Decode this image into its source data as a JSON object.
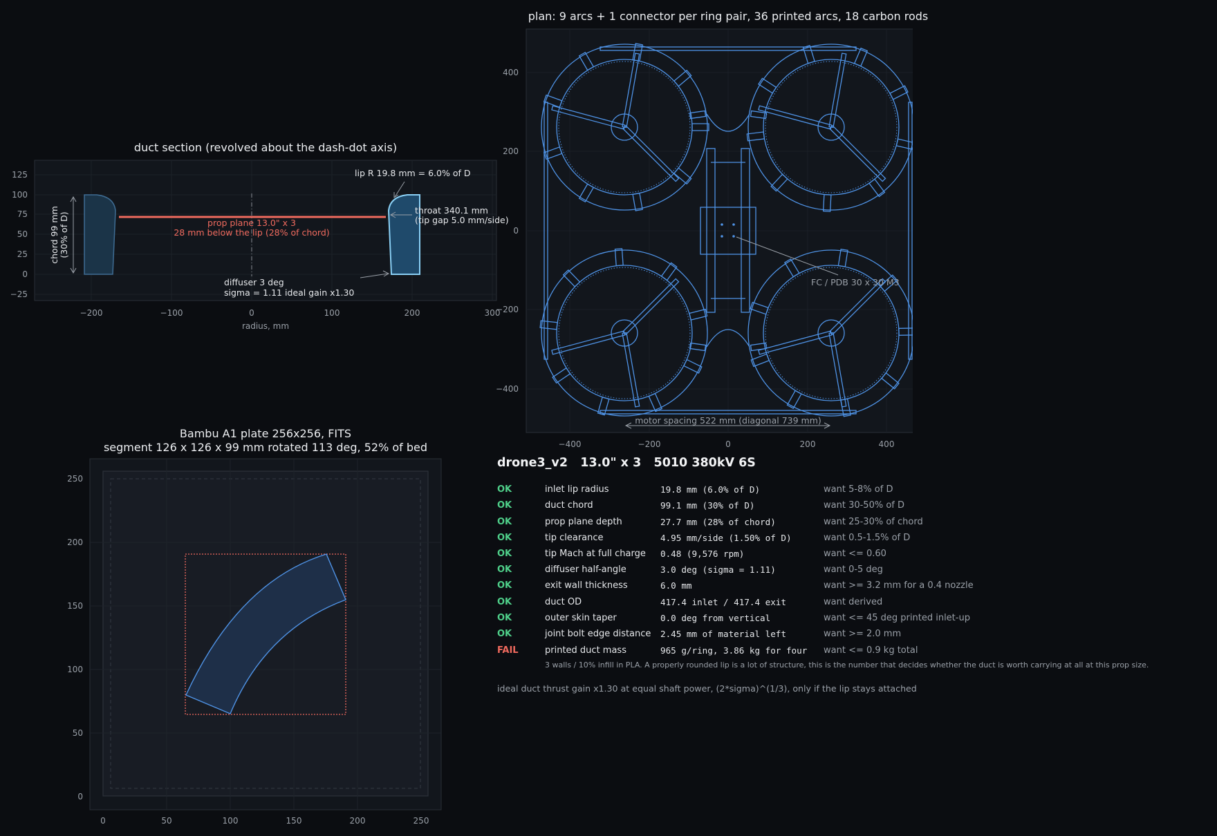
{
  "duct_section": {
    "title": "duct section (revolved about the dash-dot axis)",
    "xlabel": "radius, mm",
    "xticks": [
      "−200",
      "−100",
      "0",
      "100",
      "200",
      "300"
    ],
    "yticks": [
      "125",
      "100",
      "75",
      "50",
      "25",
      "0",
      "−25"
    ],
    "annotations": {
      "lip": "lip R 19.8 mm = 6.0% of D",
      "throat_1": "throat 340.1 mm",
      "throat_2": "(tip gap 5.0 mm/side)",
      "chord_1": "chord 99 mm",
      "chord_2": "(30% of D)",
      "prop_1": "prop plane 13.0\" x 3",
      "prop_2": "28 mm below the lip (28% of chord)",
      "diffuser_1": "diffuser 3 deg",
      "diffuser_2": "sigma = 1.11   ideal gain x1.30"
    }
  },
  "plan": {
    "title": "plan: 9 arcs + 1 connector per ring pair, 36 printed arcs, 18 carbon rods",
    "xticks": [
      "−400",
      "−200",
      "0",
      "200",
      "400"
    ],
    "yticks": [
      "400",
      "200",
      "0",
      "−200",
      "−400"
    ],
    "fc_label": "FC / PDB  30 x 30  M3",
    "spacing_label": "motor spacing 522 mm   (diagonal 739 mm)"
  },
  "bed": {
    "title_1": "Bambu A1 plate 256x256, FITS",
    "title_2": "segment 126 x 126 x 99 mm rotated 113 deg, 52% of bed",
    "xticks": [
      "0",
      "50",
      "100",
      "150",
      "200",
      "250"
    ],
    "yticks": [
      "250",
      "200",
      "150",
      "100",
      "50",
      "0"
    ]
  },
  "summary": {
    "heading": "drone3_v2   13.0\" x 3   5010 380kV 6S",
    "rows": [
      {
        "status": "OK",
        "name": "inlet lip radius",
        "value": "19.8 mm (6.0% of D)",
        "want": "want 5-8% of D"
      },
      {
        "status": "OK",
        "name": "duct chord",
        "value": "99.1 mm (30% of D)",
        "want": "want 30-50% of D"
      },
      {
        "status": "OK",
        "name": "prop plane depth",
        "value": "27.7 mm (28% of chord)",
        "want": "want 25-30% of chord"
      },
      {
        "status": "OK",
        "name": "tip clearance",
        "value": "4.95 mm/side (1.50% of D)",
        "want": "want 0.5-1.5% of D"
      },
      {
        "status": "OK",
        "name": "tip Mach at full charge",
        "value": "0.48 (9,576 rpm)",
        "want": "want <= 0.60"
      },
      {
        "status": "OK",
        "name": "diffuser half-angle",
        "value": "3.0 deg (sigma = 1.11)",
        "want": "want 0-5 deg"
      },
      {
        "status": "OK",
        "name": "exit wall thickness",
        "value": "6.0 mm",
        "want": "want >= 3.2 mm for a 0.4 nozzle"
      },
      {
        "status": "OK",
        "name": "duct OD",
        "value": "417.4 inlet / 417.4 exit",
        "want": "want derived"
      },
      {
        "status": "OK",
        "name": "outer skin taper",
        "value": "0.0 deg from vertical",
        "want": "want <= 45 deg printed inlet-up"
      },
      {
        "status": "OK",
        "name": "joint bolt edge distance",
        "value": "2.45 mm of material left",
        "want": "want >= 2.0 mm"
      },
      {
        "status": "FAIL",
        "name": "printed duct mass",
        "value": "965 g/ring, 3.86 kg for four",
        "want": "want <= 0.9 kg total"
      }
    ],
    "note": "3 walls / 10% infill in PLA. A properly rounded lip is a lot of structure, this is the number that decides whether the duct is worth carrying at all at this prop size.",
    "footer": "ideal duct thrust gain x1.30 at equal shaft power, (2*sigma)^(1/3), only if the lip stays attached"
  },
  "colors": {
    "background": "#0b0d11",
    "axes_bg": "#12161c",
    "line_blue": "#4f93e6",
    "ok_green": "#4fd08a",
    "fail_red": "#f06a5e"
  }
}
